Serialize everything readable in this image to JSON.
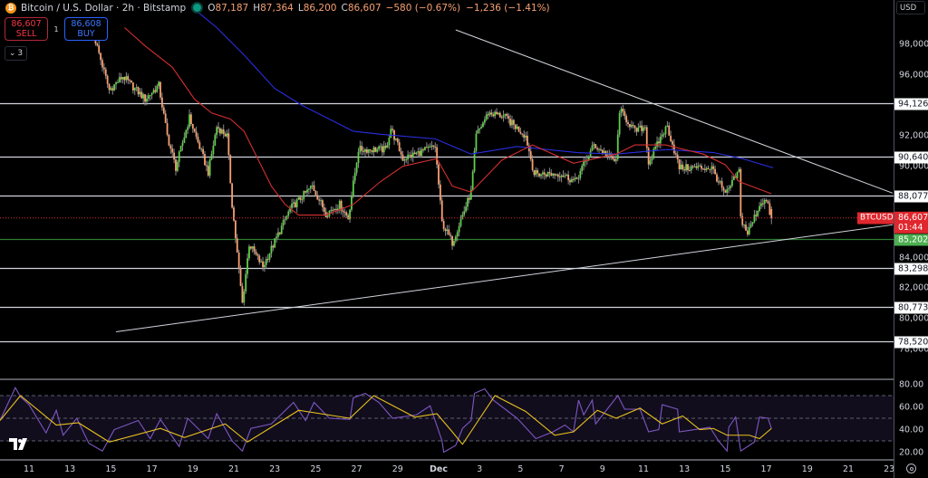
{
  "header": {
    "symbol": "Bitcoin / U.S. Dollar · 2h · Bitstamp",
    "logo_letter": "₿",
    "ohlc": [
      {
        "k": "O",
        "v": "87,187"
      },
      {
        "k": "H",
        "v": "87,364"
      },
      {
        "k": "L",
        "v": "86,200"
      },
      {
        "k": "C",
        "v": "86,607"
      }
    ],
    "change": "−580 (−0.67%)",
    "change_period": "−1,236 (−1.41%)"
  },
  "trade": {
    "sell_price": "86,607",
    "sell_label": "SELL",
    "spread": "1",
    "buy_price": "86,608",
    "buy_label": "BUY",
    "indicators_toggle": "⌄",
    "indicators_count": "3"
  },
  "axis": {
    "currency": "USD",
    "price_ticks": [
      {
        "label": "98,000",
        "value": 98000
      },
      {
        "label": "96,000",
        "value": 96000
      },
      {
        "label": "92,000",
        "value": 92000
      },
      {
        "label": "90,000",
        "value": 90000
      },
      {
        "label": "84,000",
        "value": 84000
      },
      {
        "label": "82,000",
        "value": 82000
      },
      {
        "label": "80,000",
        "value": 80000
      },
      {
        "label": "78,000",
        "value": 78000
      }
    ],
    "rsi_ticks": [
      {
        "label": "80.00",
        "value": 80
      },
      {
        "label": "60.00",
        "value": 60
      },
      {
        "label": "40.00",
        "value": 40
      },
      {
        "label": "20.00",
        "value": 20
      }
    ],
    "x_ticks": [
      {
        "label": "11",
        "date": "11-11"
      },
      {
        "label": "13",
        "date": "11-13"
      },
      {
        "label": "15",
        "date": "11-15"
      },
      {
        "label": "17",
        "date": "11-17"
      },
      {
        "label": "19",
        "date": "11-19"
      },
      {
        "label": "21",
        "date": "11-21"
      },
      {
        "label": "23",
        "date": "11-23"
      },
      {
        "label": "25",
        "date": "11-25"
      },
      {
        "label": "27",
        "date": "11-27"
      },
      {
        "label": "29",
        "date": "11-29"
      },
      {
        "label": "Dec",
        "date": "12-01"
      },
      {
        "label": "3",
        "date": "12-03"
      },
      {
        "label": "5",
        "date": "12-05"
      },
      {
        "label": "7",
        "date": "12-07"
      },
      {
        "label": "9",
        "date": "12-09"
      },
      {
        "label": "11",
        "date": "12-11"
      },
      {
        "label": "13",
        "date": "12-13"
      },
      {
        "label": "15",
        "date": "12-15"
      },
      {
        "label": "17",
        "date": "12-17"
      },
      {
        "label": "19",
        "date": "12-19"
      },
      {
        "label": "21",
        "date": "12-21"
      },
      {
        "label": "23",
        "date": "12-23"
      }
    ]
  },
  "price_tag": {
    "symbol": "BTCUSD",
    "price": "86,607",
    "countdown": "01:44"
  },
  "colors": {
    "up": "#5fcf48",
    "down": "#f7a072",
    "wick": "#8a8a8a",
    "ema": "#d32f2f",
    "sma": "#2a2ee0",
    "rsi": "#7e57c2",
    "rsi_ma": "#e8c11c",
    "level": "#d1d4dc",
    "support": "#2e7d32",
    "current": "#e0272e"
  },
  "chart_data": [
    {
      "type": "candlestick",
      "title": "",
      "interval": "2h",
      "ylim": [
        77000,
        100900
      ],
      "last_bar": {
        "open": 87187,
        "high": 87364,
        "low": 86200,
        "close": 86607
      },
      "close_path": [
        [
          "11-14 06:00",
          98200
        ],
        [
          "11-14 22:00",
          95000
        ],
        [
          "11-15 14:00",
          95900
        ],
        [
          "11-16 16:00",
          94400
        ],
        [
          "11-17 08:00",
          95300
        ],
        [
          "11-17 18:00",
          92000
        ],
        [
          "11-18 04:00",
          89900
        ],
        [
          "11-18 20:00",
          93200
        ],
        [
          "11-19 18:00",
          89600
        ],
        [
          "11-20 04:00",
          92600
        ],
        [
          "11-20 16:00",
          92000
        ],
        [
          "11-20 22:00",
          87500
        ],
        [
          "11-21 10:00",
          81000
        ],
        [
          "11-21 18:00",
          84900
        ],
        [
          "11-22 10:00",
          83400
        ],
        [
          "11-23 18:00",
          87200
        ],
        [
          "11-24 20:00",
          88700
        ],
        [
          "11-25 12:00",
          86900
        ],
        [
          "11-26 04:00",
          87500
        ],
        [
          "11-26 14:00",
          86600
        ],
        [
          "11-27 02:00",
          91100
        ],
        [
          "11-28 10:00",
          91100
        ],
        [
          "11-28 16:00",
          92500
        ],
        [
          "11-29 06:00",
          90500
        ],
        [
          "11-30 20:00",
          91300
        ],
        [
          "12-01 04:00",
          86300
        ],
        [
          "12-01 16:00",
          85000
        ],
        [
          "12-02 14:00",
          88300
        ],
        [
          "12-02 20:00",
          92000
        ],
        [
          "12-03 10:00",
          93500
        ],
        [
          "12-04 04:00",
          93300
        ],
        [
          "12-05 06:00",
          92000
        ],
        [
          "12-05 16:00",
          89500
        ],
        [
          "12-07 00:00",
          89500
        ],
        [
          "12-07 16:00",
          89000
        ],
        [
          "12-08 14:00",
          91400
        ],
        [
          "12-09 16:00",
          90300
        ],
        [
          "12-09 20:00",
          93700
        ],
        [
          "12-10 14:00",
          92300
        ],
        [
          "12-11 02:00",
          92600
        ],
        [
          "12-11 06:00",
          90200
        ],
        [
          "12-11 22:00",
          92100
        ],
        [
          "12-12 04:00",
          92600
        ],
        [
          "12-12 18:00",
          89900
        ],
        [
          "12-14 08:00",
          89900
        ],
        [
          "12-15 00:00",
          88100
        ],
        [
          "12-15 16:00",
          89700
        ],
        [
          "12-15 18:00",
          86600
        ],
        [
          "12-16 02:00",
          85600
        ],
        [
          "12-16 18:00",
          87700
        ],
        [
          "12-17 00:00",
          87700
        ],
        [
          "12-17 06:00",
          86607
        ]
      ],
      "ema_red": [
        [
          "11-15 16:00",
          99100
        ],
        [
          "11-16 16:00",
          97900
        ],
        [
          "11-18 00:00",
          96500
        ],
        [
          "11-19 02:00",
          94400
        ],
        [
          "11-19 22:00",
          93500
        ],
        [
          "11-20 20:00",
          93100
        ],
        [
          "11-21 12:00",
          92300
        ],
        [
          "11-22 04:00",
          90500
        ],
        [
          "11-22 20:00",
          88700
        ],
        [
          "11-23 12:00",
          87500
        ],
        [
          "11-24 04:00",
          86800
        ],
        [
          "11-25 12:00",
          86800
        ],
        [
          "11-26 20:00",
          87500
        ],
        [
          "11-28 04:00",
          89000
        ],
        [
          "11-29 06:00",
          90000
        ],
        [
          "11-30 22:00",
          90500
        ],
        [
          "12-01 16:00",
          88700
        ],
        [
          "12-02 14:00",
          88300
        ],
        [
          "12-04 02:00",
          90400
        ],
        [
          "12-05 14:00",
          91400
        ],
        [
          "12-07 14:00",
          90200
        ],
        [
          "12-09 16:00",
          90800
        ],
        [
          "12-10 14:00",
          91400
        ],
        [
          "12-12 02:00",
          91400
        ],
        [
          "12-13 22:00",
          90800
        ],
        [
          "12-15 00:00",
          90100
        ],
        [
          "12-15 16:00",
          89000
        ],
        [
          "12-17 06:00",
          88200
        ]
      ],
      "sma_blue": [
        [
          "11-19 02:00",
          100300
        ],
        [
          "11-20 04:00",
          99100
        ],
        [
          "11-21 12:00",
          97300
        ],
        [
          "11-23 00:00",
          95100
        ],
        [
          "11-24 08:00",
          94000
        ],
        [
          "11-26 20:00",
          92300
        ],
        [
          "11-28 04:00",
          92100
        ],
        [
          "11-30 20:00",
          91800
        ],
        [
          "12-02 14:00",
          90800
        ],
        [
          "12-04 20:00",
          91300
        ],
        [
          "12-07 18:00",
          90900
        ],
        [
          "12-09 16:00",
          90800
        ],
        [
          "12-12 04:00",
          91100
        ],
        [
          "12-14 10:00",
          90900
        ],
        [
          "12-15 20:00",
          90500
        ],
        [
          "12-17 08:00",
          89900
        ]
      ],
      "horizontal_levels": [
        {
          "label": "94,126",
          "value": 94126,
          "style": "level"
        },
        {
          "label": "90,640",
          "value": 90640,
          "style": "level"
        },
        {
          "label": "88,077",
          "value": 88077,
          "style": "level"
        },
        {
          "label": "85,202",
          "value": 85202,
          "style": "support"
        },
        {
          "label": "83,298",
          "value": 83298,
          "style": "level"
        },
        {
          "label": "80,773",
          "value": 80773,
          "style": "level"
        },
        {
          "label": "78,520",
          "value": 78520,
          "style": "level"
        }
      ],
      "trendlines": [
        {
          "from": [
            "12-01 20:00",
            98950
          ],
          "to": [
            "12-23 04:00",
            88240
          ]
        },
        {
          "from": [
            "11-15 06:00",
            79140
          ],
          "to": [
            "12-23 04:00",
            86160
          ]
        }
      ],
      "current_price": 86607
    },
    {
      "type": "line",
      "title": "",
      "ylim": [
        15,
        85
      ],
      "bands": {
        "upper": 70,
        "middle": 50,
        "lower": 30
      },
      "series": [
        {
          "key": "rsi",
          "values": [
            [
              "11-09 14:00",
              48
            ],
            [
              "11-10 08:00",
              77
            ],
            [
              "11-10 14:00",
              69
            ],
            [
              "11-11 00:00",
              62
            ],
            [
              "11-11 20:00",
              37
            ],
            [
              "11-12 08:00",
              57
            ],
            [
              "11-12 16:00",
              35
            ],
            [
              "11-13 08:00",
              50
            ],
            [
              "11-13 22:00",
              28
            ],
            [
              "11-14 14:00",
              21
            ],
            [
              "11-15 04:00",
              40
            ],
            [
              "11-16 08:00",
              48
            ],
            [
              "11-16 22:00",
              32
            ],
            [
              "11-17 10:00",
              49
            ],
            [
              "11-18 08:00",
              25
            ],
            [
              "11-18 18:00",
              50
            ],
            [
              "11-19 18:00",
              32
            ],
            [
              "11-20 04:00",
              54
            ],
            [
              "11-20 22:00",
              30
            ],
            [
              "11-21 10:00",
              21
            ],
            [
              "11-21 20:00",
              41
            ],
            [
              "11-22 20:00",
              45
            ],
            [
              "11-23 22:00",
              64
            ],
            [
              "11-24 12:00",
              48
            ],
            [
              "11-24 22:00",
              64
            ],
            [
              "11-25 16:00",
              50
            ],
            [
              "11-26 16:00",
              49
            ],
            [
              "11-26 20:00",
              68
            ],
            [
              "11-27 10:00",
              72
            ],
            [
              "11-28 02:00",
              64
            ],
            [
              "11-28 18:00",
              50
            ],
            [
              "11-29 22:00",
              53
            ],
            [
              "11-30 14:00",
              61
            ],
            [
              "12-01 04:00",
              30
            ],
            [
              "12-01 06:00",
              20
            ],
            [
              "12-01 20:00",
              26
            ],
            [
              "12-02 04:00",
              41
            ],
            [
              "12-02 14:00",
              48
            ],
            [
              "12-02 18:00",
              72
            ],
            [
              "12-03 06:00",
              76
            ],
            [
              "12-03 16:00",
              66
            ],
            [
              "12-04 20:00",
              50
            ],
            [
              "12-05 18:00",
              32
            ],
            [
              "12-06 14:00",
              38
            ],
            [
              "12-07 04:00",
              44
            ],
            [
              "12-07 14:00",
              38
            ],
            [
              "12-07 20:00",
              66
            ],
            [
              "12-08 02:00",
              53
            ],
            [
              "12-08 12:00",
              66
            ],
            [
              "12-08 16:00",
              45
            ],
            [
              "12-09 18:00",
              70
            ],
            [
              "12-10 02:00",
              58
            ],
            [
              "12-10 20:00",
              58
            ],
            [
              "12-11 06:00",
              38
            ],
            [
              "12-11 18:00",
              40
            ],
            [
              "12-11 22:00",
              62
            ],
            [
              "12-12 16:00",
              58
            ],
            [
              "12-12 18:00",
              38
            ],
            [
              "12-14 06:00",
              42
            ],
            [
              "12-14 16:00",
              30
            ],
            [
              "12-15 02:00",
              21
            ],
            [
              "12-15 04:00",
              42
            ],
            [
              "12-15 12:00",
              51
            ],
            [
              "12-15 18:00",
              21
            ],
            [
              "12-16 10:00",
              29
            ],
            [
              "12-16 16:00",
              51
            ],
            [
              "12-17 02:00",
              50
            ],
            [
              "12-17 06:00",
              41
            ]
          ]
        },
        {
          "key": "rsi_ma",
          "values": [
            [
              "11-09 14:00",
              48
            ],
            [
              "11-10 14:00",
              70
            ],
            [
              "11-12 08:00",
              44
            ],
            [
              "11-13 10:00",
              46
            ],
            [
              "11-14 22:00",
              29
            ],
            [
              "11-17 10:00",
              41
            ],
            [
              "11-18 14:00",
              33
            ],
            [
              "11-20 14:00",
              45
            ],
            [
              "11-21 16:00",
              29
            ],
            [
              "11-24 04:00",
              57
            ],
            [
              "11-26 16:00",
              50
            ],
            [
              "11-27 20:00",
              70
            ],
            [
              "11-29 20:00",
              51
            ],
            [
              "11-30 22:00",
              54
            ],
            [
              "12-01 16:00",
              38
            ],
            [
              "12-02 04:00",
              27
            ],
            [
              "12-03 18:00",
              70
            ],
            [
              "12-05 06:00",
              56
            ],
            [
              "12-06 16:00",
              35
            ],
            [
              "12-07 14:00",
              38
            ],
            [
              "12-08 18:00",
              57
            ],
            [
              "12-09 16:00",
              50
            ],
            [
              "12-10 20:00",
              59
            ],
            [
              "12-11 22:00",
              45
            ],
            [
              "12-12 22:00",
              52
            ],
            [
              "12-13 18:00",
              40
            ],
            [
              "12-14 10:00",
              41
            ],
            [
              "12-15 02:00",
              35
            ],
            [
              "12-16 04:00",
              35
            ],
            [
              "12-16 16:00",
              32
            ],
            [
              "12-17 06:00",
              41
            ]
          ]
        }
      ]
    }
  ]
}
